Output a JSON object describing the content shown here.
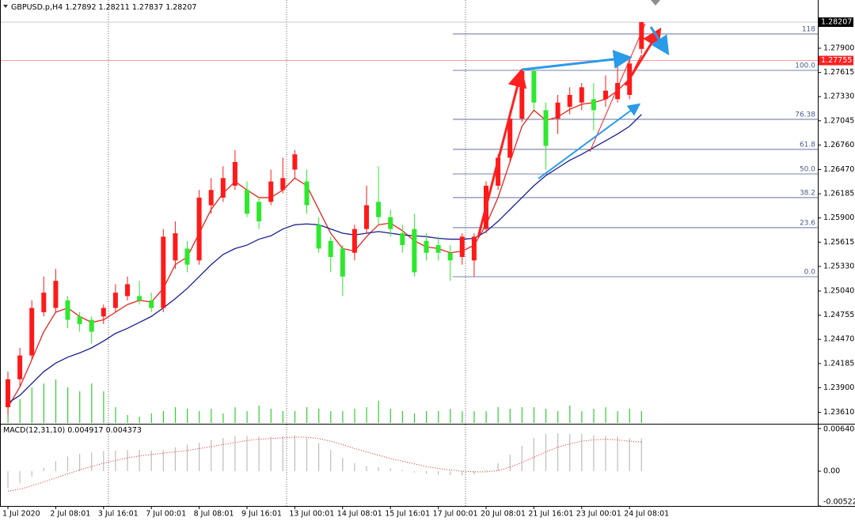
{
  "chart_data": [
    {
      "type": "candlestick",
      "title": "GBPUSD.p,H4",
      "categories": [
        "1 Jul 2020",
        null,
        null,
        null,
        "2 Jul 08:01",
        null,
        null,
        null,
        "3 Jul 16:01",
        null,
        null,
        null,
        "7 Jul 00:01",
        null,
        null,
        null,
        "8 Jul 08:01",
        null,
        null,
        null,
        "9 Jul 16:01",
        null,
        null,
        null,
        "13 Jul 00:01",
        null,
        null,
        null,
        "14 Jul 08:01",
        null,
        null,
        null,
        "15 Jul 16:01",
        null,
        null,
        null,
        "17 Jul 00:01",
        null,
        null,
        null,
        "20 Jul 08:01",
        null,
        null,
        null,
        "21 Jul 16:01",
        null,
        null,
        null,
        "23 Jul 00:01",
        null,
        null,
        null,
        "24 Jul 08:01",
        null
      ],
      "open": [
        1.2367,
        1.24,
        1.2428,
        1.2479,
        1.2484,
        1.2493,
        1.2474,
        1.247,
        1.2474,
        1.2484,
        1.2498,
        1.2498,
        1.2493,
        1.2484,
        1.254,
        1.2554,
        1.254,
        1.2605,
        1.2614,
        1.2628,
        1.2623,
        1.2609,
        1.2609,
        1.2623,
        1.2647,
        1.2633,
        1.2582,
        1.2563,
        1.2554,
        1.2549,
        1.2577,
        1.2609,
        1.2591,
        1.2572,
        1.2577,
        1.2563,
        1.2558,
        1.2549,
        1.2544,
        1.254,
        1.2577,
        1.2628,
        1.2661,
        1.2707,
        1.2763,
        1.2717,
        1.2707,
        1.2721,
        1.2726,
        1.273,
        1.273,
        1.273,
        1.2735,
        1.27892
      ],
      "high": [
        1.2409,
        1.2437,
        1.2493,
        1.2521,
        1.253,
        1.2498,
        1.2479,
        1.2474,
        1.2488,
        1.2512,
        1.2521,
        1.2516,
        1.2502,
        1.2577,
        1.2586,
        1.2563,
        1.2623,
        1.2637,
        1.2651,
        1.267,
        1.2633,
        1.2614,
        1.2647,
        1.2661,
        1.267,
        1.2647,
        1.2591,
        1.2568,
        1.2558,
        1.2582,
        1.2628,
        1.2651,
        1.26,
        1.2582,
        1.2595,
        1.2572,
        1.2568,
        1.2558,
        1.2572,
        1.2572,
        1.2633,
        1.2665,
        1.2717,
        1.2765,
        1.2765,
        1.2726,
        1.2735,
        1.2744,
        1.2749,
        1.2749,
        1.2758,
        1.2772,
        1.2777,
        1.28211
      ],
      "low": [
        1.2358,
        1.2391,
        1.2423,
        1.2474,
        1.2479,
        1.246,
        1.2456,
        1.2442,
        1.2465,
        1.2479,
        1.2493,
        1.2488,
        1.2479,
        1.2479,
        1.253,
        1.2526,
        1.2535,
        1.2595,
        1.2609,
        1.2623,
        1.2591,
        1.2577,
        1.2605,
        1.2619,
        1.2637,
        1.2595,
        1.2549,
        1.2526,
        1.2498,
        1.254,
        1.2572,
        1.2582,
        1.2568,
        1.2549,
        1.2521,
        1.254,
        1.254,
        1.2516,
        1.2535,
        1.2521,
        1.2572,
        1.2623,
        1.2656,
        1.2703,
        1.2717,
        1.2647,
        1.2689,
        1.2712,
        1.2717,
        1.2693,
        1.2721,
        1.2726,
        1.273,
        1.27837
      ],
      "close": [
        1.24,
        1.2428,
        1.2484,
        1.2502,
        1.2516,
        1.247,
        1.2465,
        1.2456,
        1.2484,
        1.2502,
        1.2512,
        1.2493,
        1.2484,
        1.2568,
        1.2572,
        1.2535,
        1.2614,
        1.2623,
        1.2637,
        1.2656,
        1.2595,
        1.2586,
        1.2633,
        1.2637,
        1.2665,
        1.2605,
        1.2554,
        1.2544,
        1.2521,
        1.2577,
        1.2605,
        1.2591,
        1.2577,
        1.2558,
        1.2526,
        1.2549,
        1.2549,
        1.254,
        1.2568,
        1.2568,
        1.2628,
        1.2661,
        1.2707,
        1.2763,
        1.2726,
        1.2675,
        1.2726,
        1.2735,
        1.2744,
        1.2717,
        1.274,
        1.2749,
        1.2772,
        1.28207
      ],
      "up_color": "#ff1a1a",
      "down_color": "#2ee82e",
      "ma_lines": [
        {
          "color": "#e8231d",
          "values": [
            1.2367,
            1.2391,
            1.2423,
            1.2456,
            1.2479,
            1.2484,
            1.2474,
            1.2467,
            1.247,
            1.2479,
            1.2488,
            1.2493,
            1.2491,
            1.2507,
            1.2535,
            1.2544,
            1.2572,
            1.26,
            1.2619,
            1.2633,
            1.2623,
            1.2614,
            1.2614,
            1.2623,
            1.2637,
            1.2628,
            1.26,
            1.2572,
            1.2554,
            1.2551,
            1.2568,
            1.2582,
            1.2584,
            1.2575,
            1.2563,
            1.2556,
            1.2554,
            1.2549,
            1.2551,
            1.2558,
            1.2582,
            1.2614,
            1.2656,
            1.2698,
            1.2717,
            1.2705,
            1.2709,
            1.2718,
            1.2724,
            1.2726,
            1.273,
            1.274,
            1.2754,
            1.2782
          ]
        },
        {
          "color": "#1a1f8f",
          "values": [
            1.2372,
            1.2381,
            1.2395,
            1.2409,
            1.2419,
            1.2426,
            1.2431,
            1.2437,
            1.2445,
            1.2454,
            1.246,
            1.2467,
            1.2474,
            1.2484,
            1.2495,
            1.2507,
            1.2521,
            1.2535,
            1.2547,
            1.2554,
            1.2558,
            1.2565,
            1.2569,
            1.2577,
            1.2582,
            1.2583,
            1.2582,
            1.2577,
            1.2572,
            1.257,
            1.2572,
            1.2574,
            1.2572,
            1.257,
            1.2569,
            1.2568,
            1.2566,
            1.2565,
            1.2565,
            1.2566,
            1.2574,
            1.2586,
            1.26,
            1.2614,
            1.2628,
            1.264,
            1.2649,
            1.2658,
            1.2665,
            1.2673,
            1.2681,
            1.2689,
            1.2698,
            1.2712
          ]
        }
      ],
      "volume": [
        2000,
        3000,
        4500,
        5000,
        5500,
        4500,
        4000,
        5000,
        4000,
        2000,
        1000,
        800,
        1200,
        1500,
        2000,
        1800,
        1500,
        1800,
        1200,
        2000,
        1500,
        2200,
        1800,
        1500,
        1500,
        2000,
        1800,
        1500,
        1500,
        1800,
        2000,
        2800,
        1800,
        1500,
        1200,
        1500,
        1500,
        1800,
        1500,
        1500,
        1500,
        2000,
        1800,
        2000,
        2000,
        1800,
        1500,
        2200,
        1500,
        1800,
        2000,
        1500,
        1800,
        1500
      ],
      "volume_color": "#33cc33",
      "fibonacci": [
        {
          "label": "118",
          "value": 1.28068
        },
        {
          "label": "100.0",
          "value": 1.27639
        },
        {
          "label": "76.38",
          "value": 1.27062
        },
        {
          "label": "61.8",
          "value": 1.26708
        },
        {
          "label": "50.0",
          "value": 1.26419
        },
        {
          "label": "38.2",
          "value": 1.2614
        },
        {
          "label": "23.6",
          "value": 1.25786
        },
        {
          "label": "0.0",
          "value": 1.25208
        }
      ],
      "fib_color": "#4b5a8c",
      "price_lines": [
        {
          "value": 1.27755,
          "color": "#ff2020"
        }
      ],
      "ylim": [
        1.23485,
        1.28468
      ],
      "yticks": [
        {
          "value": 1.279,
          "label": "1.27900"
        },
        1.27615,
        {
          "value": 1.2733,
          "label": "1.27330"
        },
        1.27045,
        {
          "value": 1.2676,
          "label": "1.26760"
        },
        {
          "value": 1.2647,
          "label": "1.26470"
        },
        1.26185,
        {
          "value": 1.259,
          "label": "1.25900"
        },
        1.25615,
        {
          "value": 1.2533,
          "label": "1.25330"
        },
        {
          "value": 1.2504,
          "label": "1.25040"
        },
        1.24755,
        {
          "value": 1.2447,
          "label": "1.24470"
        },
        1.24185,
        {
          "value": 1.239,
          "label": "1.23900"
        },
        {
          "value": 1.2361,
          "label": "1.23610"
        }
      ]
    },
    {
      "type": "macd",
      "title": "MACD(12,31,10)",
      "histogram": [
        -0.0025,
        -0.0018,
        -0.0008,
        0.0005,
        0.0015,
        0.0022,
        0.0026,
        0.0028,
        0.003,
        0.0031,
        0.0032,
        0.0032,
        0.0031,
        0.0032,
        0.0036,
        0.004,
        0.0043,
        0.0047,
        0.005,
        0.0053,
        0.0053,
        0.0052,
        0.0052,
        0.0053,
        0.0054,
        0.005,
        0.0042,
        0.0032,
        0.002,
        0.0012,
        0.0008,
        0.0006,
        0.0004,
        0.0002,
        -0.0002,
        -0.0004,
        -0.0005,
        -0.0006,
        -0.0006,
        -0.0005,
        0.0002,
        0.0012,
        0.0025,
        0.0038,
        0.005,
        0.0056,
        0.0057,
        0.0056,
        0.0056,
        0.0054,
        0.0053,
        0.0052,
        0.005,
        0.004917
      ],
      "signal": [
        -0.003,
        -0.0027,
        -0.0022,
        -0.0016,
        -0.001,
        -0.0004,
        0.0002,
        0.0007,
        0.0012,
        0.0016,
        0.002,
        0.0023,
        0.0025,
        0.0027,
        0.0029,
        0.0031,
        0.0034,
        0.0037,
        0.004,
        0.0043,
        0.0046,
        0.0048,
        0.0049,
        0.005,
        0.0051,
        0.0051,
        0.0049,
        0.0045,
        0.004,
        0.0034,
        0.0029,
        0.0024,
        0.0019,
        0.0015,
        0.0011,
        0.0007,
        0.0004,
        0.0002,
        0,
        -0.0001,
        -0.0001,
        0.0001,
        0.0006,
        0.0013,
        0.0021,
        0.0029,
        0.0036,
        0.0041,
        0.0045,
        0.0047,
        0.0048,
        0.0047,
        0.0045,
        0.004373
      ],
      "histogram_color": "#bdbdbd",
      "signal_color": "#e8231d",
      "ylim": [
        -0.00522,
        0.007
      ],
      "yticks": [
        0.006404,
        {
          "value": 0,
          "label": "0.00"
        },
        -0.005224
      ]
    }
  ]
}
